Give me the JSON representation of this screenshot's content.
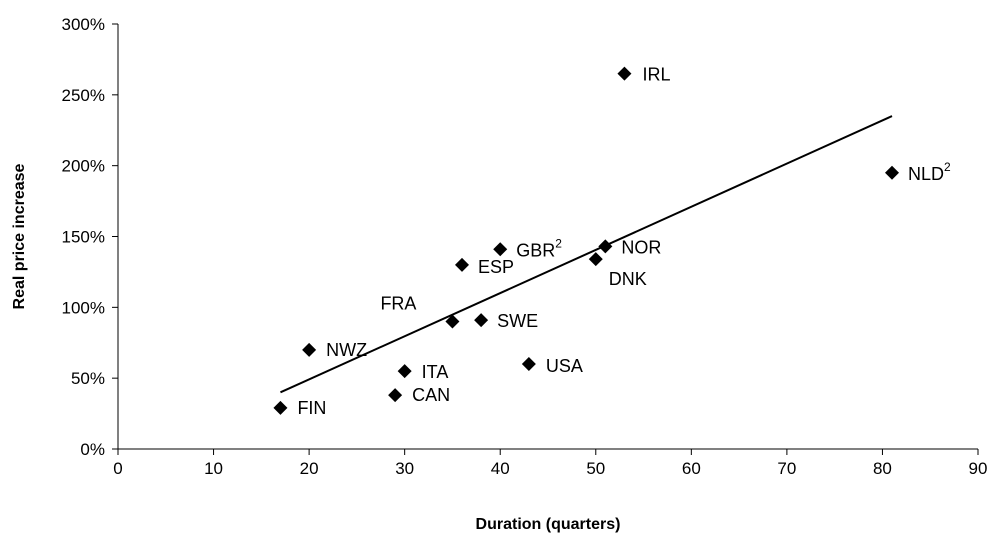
{
  "chart_data": {
    "type": "scatter",
    "xlabel": "Duration (quarters)",
    "ylabel": "Real price increase",
    "xlim": [
      0,
      90
    ],
    "ylim": [
      0,
      3
    ],
    "x_ticks": [
      "0",
      "10",
      "20",
      "30",
      "40",
      "50",
      "60",
      "70",
      "80",
      "90"
    ],
    "y_ticks": [
      "0%",
      "50%",
      "100%",
      "150%",
      "200%",
      "250%",
      "300%"
    ],
    "grid": false,
    "legend": "none",
    "marker": "diamond",
    "marker_color": "#000000",
    "points": [
      {
        "label": "FIN",
        "sup": "",
        "x": 17,
        "y": 0.29
      },
      {
        "label": "NWZ",
        "sup": "",
        "x": 20,
        "y": 0.7
      },
      {
        "label": "CAN",
        "sup": "",
        "x": 29,
        "y": 0.38
      },
      {
        "label": "ITA",
        "sup": "",
        "x": 30,
        "y": 0.55
      },
      {
        "label": "FRA",
        "sup": "",
        "x": 35,
        "y": 0.9
      },
      {
        "label": "ESP",
        "sup": "",
        "x": 36,
        "y": 1.3
      },
      {
        "label": "SWE",
        "sup": "",
        "x": 38,
        "y": 0.91
      },
      {
        "label": "GBR",
        "sup": "2",
        "x": 40,
        "y": 1.41
      },
      {
        "label": "USA",
        "sup": "",
        "x": 43,
        "y": 0.6
      },
      {
        "label": "DNK",
        "sup": "",
        "x": 50,
        "y": 1.34
      },
      {
        "label": "NOR",
        "sup": "",
        "x": 51,
        "y": 1.43
      },
      {
        "label": "IRL",
        "sup": "",
        "x": 53,
        "y": 2.65
      },
      {
        "label": "NLD",
        "sup": "2",
        "x": 81,
        "y": 1.95
      }
    ],
    "trendline": {
      "x": [
        17,
        81
      ],
      "y": [
        0.4,
        2.35
      ]
    }
  }
}
